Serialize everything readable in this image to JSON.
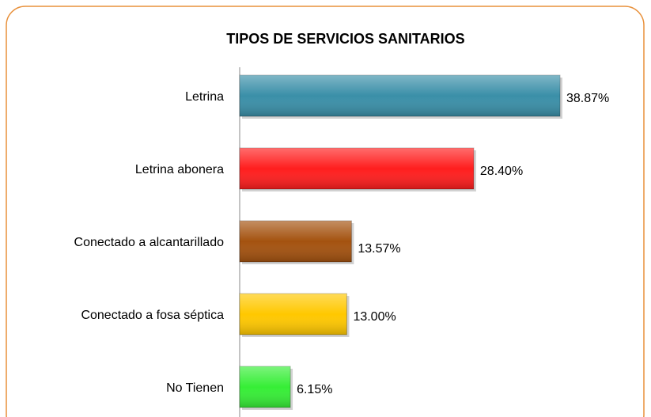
{
  "chart_data": {
    "type": "bar",
    "orientation": "horizontal",
    "title": "TIPOS DE  SERVICIOS SANITARIOS",
    "categories": [
      "Letrina",
      "Letrina abonera",
      "Conectado a alcantarillado",
      "Conectado a fosa séptica",
      "No Tienen"
    ],
    "values": [
      38.87,
      28.4,
      13.57,
      13.0,
      6.15
    ],
    "value_labels": [
      "38.87%",
      "28.40%",
      "13.57%",
      "13.00%",
      "6.15%"
    ],
    "colors": [
      "#3a8fa8",
      "#ff1e1e",
      "#a4520f",
      "#ffc800",
      "#36ee36"
    ]
  }
}
